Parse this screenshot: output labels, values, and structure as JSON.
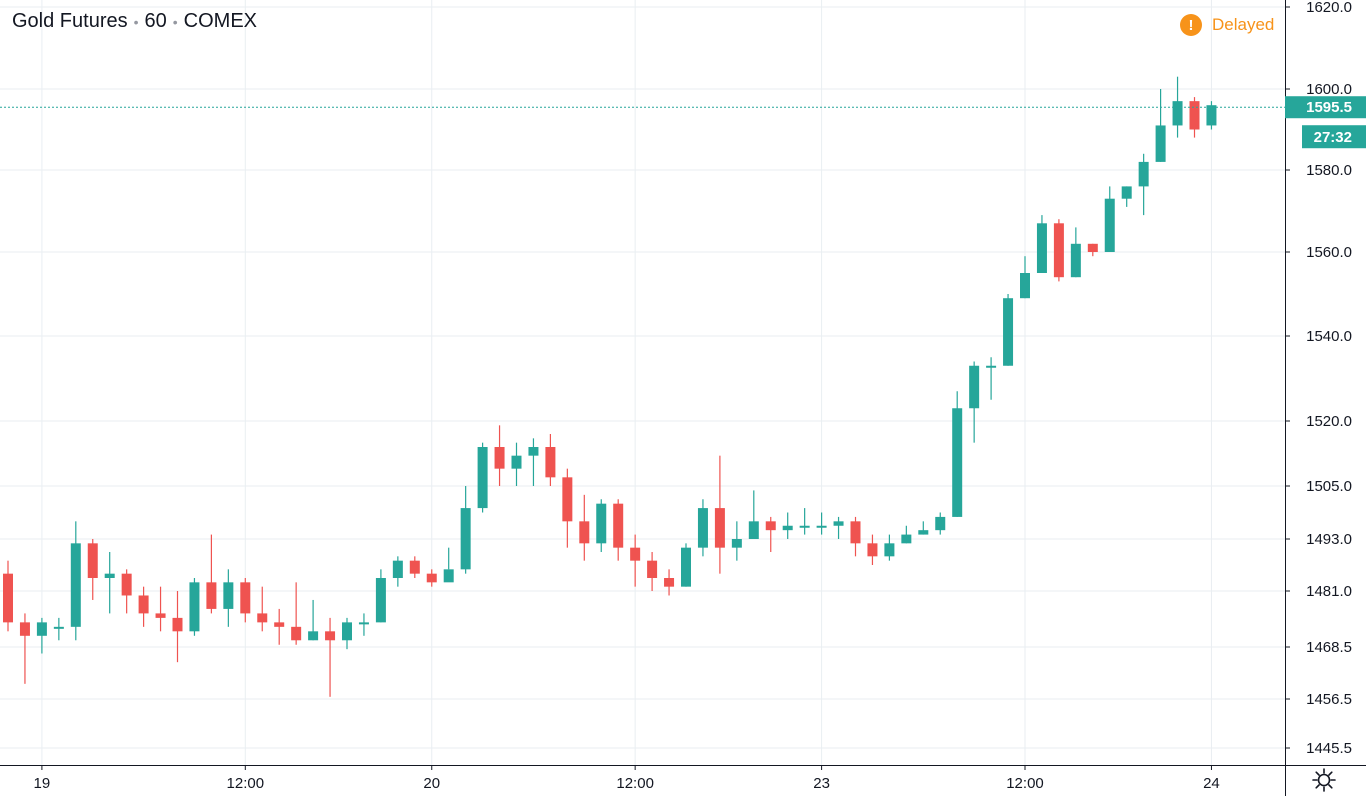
{
  "header": {
    "symbol": "Gold Futures",
    "interval": "60",
    "exchange": "COMEX",
    "separator": "•"
  },
  "status": {
    "icon": "exclamation-icon",
    "icon_glyph": "!",
    "label": "Delayed"
  },
  "colors": {
    "up": "#26a69a",
    "down": "#ef5350",
    "grid": "#e9eef2",
    "axis_text": "#131722",
    "price_line": "#26a69a",
    "accent_orange": "#f7931a"
  },
  "chart_data": {
    "type": "candlestick",
    "y_ticks": [
      "1620.0",
      "1600.0",
      "1580.0",
      "1560.0",
      "1540.0",
      "1520.0",
      "1505.0",
      "1493.0",
      "1481.0",
      "1468.5",
      "1456.5",
      "1445.5"
    ],
    "y_tick_values": [
      1620.0,
      1600.0,
      1580.0,
      1560.0,
      1540.0,
      1520.0,
      1505.0,
      1493.0,
      1481.0,
      1468.5,
      1456.5,
      1445.5
    ],
    "x_ticks": [
      "19",
      "12:00",
      "20",
      "12:00",
      "23",
      "12:00",
      "24"
    ],
    "x_tick_candle_index": [
      2,
      14,
      25,
      37,
      48,
      60,
      71
    ],
    "last_price": "1595.5",
    "countdown": "27:32",
    "candles": [
      [
        1485,
        1474,
        1488,
        1472
      ],
      [
        1474,
        1471,
        1476,
        1460
      ],
      [
        1471,
        1474,
        1475,
        1467
      ],
      [
        1473,
        1473,
        1475,
        1470
      ],
      [
        1473,
        1492,
        1497,
        1470
      ],
      [
        1492,
        1484,
        1493,
        1479
      ],
      [
        1484,
        1485,
        1490,
        1476
      ],
      [
        1485,
        1480,
        1486,
        1476
      ],
      [
        1480,
        1476,
        1482,
        1473
      ],
      [
        1476,
        1475,
        1482,
        1472
      ],
      [
        1475,
        1472,
        1481,
        1465
      ],
      [
        1472,
        1483,
        1484,
        1471
      ],
      [
        1483,
        1477,
        1494,
        1476
      ],
      [
        1477,
        1483,
        1486,
        1473
      ],
      [
        1483,
        1476,
        1484,
        1474
      ],
      [
        1476,
        1474,
        1482,
        1472
      ],
      [
        1474,
        1473,
        1477,
        1469
      ],
      [
        1473,
        1470,
        1483,
        1469
      ],
      [
        1470,
        1472,
        1479,
        1470
      ],
      [
        1472,
        1470,
        1475,
        1457
      ],
      [
        1470,
        1474,
        1475,
        1468
      ],
      [
        1474,
        1474,
        1476,
        1471
      ],
      [
        1474,
        1484,
        1486,
        1474
      ],
      [
        1484,
        1488,
        1489,
        1482
      ],
      [
        1488,
        1485,
        1489,
        1484
      ],
      [
        1485,
        1483,
        1486,
        1482
      ],
      [
        1483,
        1486,
        1491,
        1486
      ],
      [
        1486,
        1500,
        1505,
        1485
      ],
      [
        1500,
        1514,
        1515,
        1499
      ],
      [
        1514,
        1509,
        1519,
        1505
      ],
      [
        1509,
        1512,
        1515,
        1505
      ],
      [
        1512,
        1514,
        1516,
        1505
      ],
      [
        1514,
        1507,
        1517,
        1505
      ],
      [
        1507,
        1497,
        1509,
        1491
      ],
      [
        1497,
        1492,
        1503,
        1488
      ],
      [
        1492,
        1501,
        1502,
        1490
      ],
      [
        1501,
        1491,
        1502,
        1488
      ],
      [
        1491,
        1488,
        1494,
        1482
      ],
      [
        1488,
        1484,
        1490,
        1481
      ],
      [
        1484,
        1482,
        1486,
        1480
      ],
      [
        1482,
        1491,
        1492,
        1482
      ],
      [
        1491,
        1500,
        1502,
        1489
      ],
      [
        1500,
        1491,
        1512,
        1485
      ],
      [
        1491,
        1493,
        1497,
        1488
      ],
      [
        1493,
        1497,
        1504,
        1493
      ],
      [
        1497,
        1495,
        1498,
        1490
      ],
      [
        1495,
        1496,
        1499,
        1493
      ],
      [
        1496,
        1496,
        1500,
        1494
      ],
      [
        1496,
        1496,
        1499,
        1494
      ],
      [
        1496,
        1497,
        1498,
        1493
      ],
      [
        1497,
        1492,
        1498,
        1489
      ],
      [
        1492,
        1489,
        1494,
        1487
      ],
      [
        1489,
        1492,
        1494,
        1488
      ],
      [
        1492,
        1494,
        1496,
        1492
      ],
      [
        1494,
        1495,
        1497,
        1494
      ],
      [
        1495,
        1498,
        1499,
        1494
      ],
      [
        1498,
        1523,
        1527,
        1498
      ],
      [
        1523,
        1533,
        1534,
        1515
      ],
      [
        1533,
        1533,
        1535,
        1525
      ],
      [
        1533,
        1549,
        1550,
        1533
      ],
      [
        1549,
        1555,
        1559,
        1549
      ],
      [
        1555,
        1567,
        1569,
        1555
      ],
      [
        1567,
        1554,
        1568,
        1553
      ],
      [
        1554,
        1562,
        1566,
        1554
      ],
      [
        1562,
        1560,
        1562,
        1559
      ],
      [
        1560,
        1573,
        1576,
        1561
      ],
      [
        1573,
        1576,
        1576,
        1571
      ],
      [
        1576,
        1582,
        1584,
        1569
      ],
      [
        1582,
        1591,
        1600,
        1582
      ],
      [
        1591,
        1597,
        1603,
        1588
      ],
      [
        1597,
        1590,
        1598,
        1588
      ],
      [
        1591,
        1596,
        1597,
        1590
      ]
    ]
  }
}
